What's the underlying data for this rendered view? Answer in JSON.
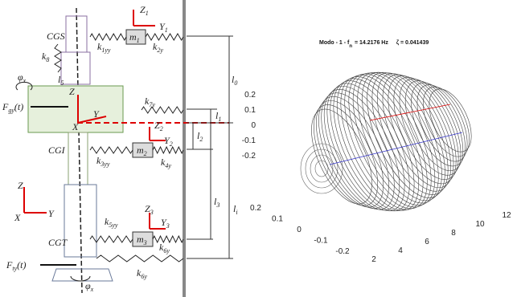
{
  "diagram": {
    "labels": [
      {
        "text": "CGS"
      },
      {
        "text": "m",
        "sub": "1"
      },
      {
        "text": "Z",
        "sub": "1"
      },
      {
        "text": "Y",
        "sub": "1"
      },
      {
        "text": "k",
        "sub": "1yy"
      },
      {
        "text": "k",
        "sub": "2y"
      },
      {
        "text": "k",
        "sub": "8"
      },
      {
        "text": "l",
        "sub": "5"
      },
      {
        "text": "F",
        "sub": "gy",
        "after": "(t)"
      },
      {
        "text": "Z"
      },
      {
        "text": "Y"
      },
      {
        "text": "X"
      },
      {
        "text": "k",
        "sub": "7y"
      },
      {
        "text": "Z",
        "sub": "2"
      },
      {
        "text": "Y",
        "sub": "2"
      },
      {
        "text": "CGI"
      },
      {
        "text": "m",
        "sub": "2"
      },
      {
        "text": "k",
        "sub": "3yy"
      },
      {
        "text": "k",
        "sub": "4y"
      },
      {
        "text": "l",
        "sub": "1"
      },
      {
        "text": "l",
        "sub": "2"
      },
      {
        "text": "l",
        "sub": "0"
      },
      {
        "text": "l",
        "sub": "3"
      },
      {
        "text": "l",
        "sub": "i"
      },
      {
        "text": "φ",
        "sub": "x"
      },
      {
        "text": "Z"
      },
      {
        "text": "Y"
      },
      {
        "text": "X"
      },
      {
        "text": "Z",
        "sub": "3"
      },
      {
        "text": "Y",
        "sub": "3"
      },
      {
        "text": "CGT"
      },
      {
        "text": "m",
        "sub": "3"
      },
      {
        "text": "k",
        "sub": "5yy"
      },
      {
        "text": "k",
        "sub": "6y"
      },
      {
        "text": "F",
        "sub": "ty",
        "after": "(t)"
      },
      {
        "text": "k",
        "sub": "6y"
      },
      {
        "text": "φ",
        "sub": "x"
      }
    ]
  },
  "plot": {
    "title": {
      "text": "Modo - 1 - f",
      "sub": "n",
      "rest": "= 14.2176 Hz",
      "zeta": "ζ = 0.041439"
    },
    "z_ticks": [
      0.2,
      0.1,
      0,
      -0.1,
      -0.2
    ],
    "y_ticks": [
      0.2,
      0.1,
      0,
      -0.1,
      -0.2
    ],
    "x_ticks": [
      2,
      4,
      6,
      8,
      10,
      12
    ]
  }
}
